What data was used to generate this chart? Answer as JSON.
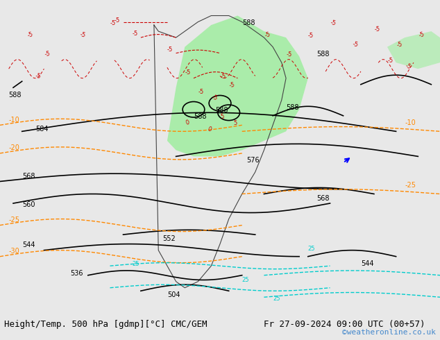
{
  "title_left": "Height/Temp. 500 hPa [gdmp][°C] CMC/GEM",
  "title_right": "Fr 27-09-2024 09:00 UTC (00+57)",
  "watermark": "©weatheronline.co.uk",
  "bg_color": "#e8e8e8",
  "fig_width": 6.34,
  "fig_height": 4.9,
  "dpi": 100,
  "bottom_bar_color": "#d0d0d0",
  "bottom_text_color": "#000000",
  "watermark_color": "#4488cc",
  "map_bg": "#f0f0f0",
  "green_region_color": "#90ee90",
  "black_contour_color": "#000000",
  "red_temp_color": "#cc0000",
  "orange_contour_color": "#ff8800",
  "cyan_contour_color": "#00cccc",
  "dashed_orange_color": "#ff8800",
  "title_fontsize": 9,
  "watermark_fontsize": 8
}
